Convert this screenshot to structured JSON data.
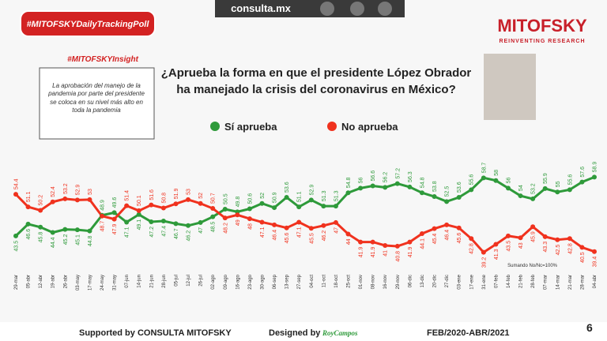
{
  "header": {
    "hashtag": "#MITOFSKYDailyTrackingPoll",
    "site": "consulta.mx",
    "brand": "MITOFSKY",
    "tagline": "REINVENTING RESEARCH"
  },
  "insight": {
    "title": "#MITOFSKYInsight",
    "text": "La aprobación del manejo de la pandemia por parte del presidente se coloca en su nivel más alto en toda la pandemia"
  },
  "footer": {
    "supported": "Supported by  CONSULTA  MITOFSKY",
    "designed": "Designed by",
    "designer": "RoyCampos",
    "period": "FEB/2020-ABR/2021",
    "page": "6"
  },
  "chart_data": {
    "type": "line",
    "title": "¿Aprueba la forma en que el presidente López Obrador ha manejado la crisis del coronavirus en México?",
    "note": "Sumando No/Nc=100%",
    "categories": [
      "29-mar",
      "05-abr",
      "12-abr",
      "19-abr",
      "26-abr",
      "03-may",
      "17-may",
      "24-may",
      "31-may",
      "07-jun",
      "14-jun",
      "21-jun",
      "28-jun",
      "05-jul",
      "12-jul",
      "26-jul",
      "02-ago",
      "09-ago",
      "16-ago",
      "23-ago",
      "30-ago",
      "06-sep",
      "13-sep",
      "27-sep",
      "04-oct",
      "11-oct",
      "18-oct",
      "25-oct",
      "01-nov",
      "08-nov",
      "16-nov",
      "29-nov",
      "06-dic",
      "13-dic",
      "20-dic",
      "27-dic",
      "03-ene",
      "17-ene",
      "31-ene",
      "07-feb",
      "14-feb",
      "21-feb",
      "28-feb",
      "07-mar",
      "14-mar",
      "21-mar",
      "28-mar",
      "04-abr"
    ],
    "series": [
      {
        "name": "Sí aprueba",
        "color": "#2e9a3a",
        "values": [
          43.5,
          46.6,
          45.8,
          44.4,
          45.2,
          45.1,
          44.8,
          48.9,
          49.6,
          47.1,
          49.1,
          47.2,
          47.4,
          46.7,
          46.2,
          47.0,
          48.5,
          50.5,
          49.8,
          50.6,
          52.0,
          50.9,
          53.6,
          51.1,
          52.9,
          51.3,
          51.3,
          54.8,
          56.0,
          56.6,
          56.2,
          57.2,
          56.3,
          54.8,
          53.8,
          52.5,
          53.6,
          55.6,
          58.7,
          58.0,
          56.0,
          54.0,
          53.2,
          55.9,
          55.0,
          55.6,
          57.6,
          58.9
        ]
      },
      {
        "name": "No aprueba",
        "color": "#f0321e",
        "values": [
          54.4,
          51.1,
          50.2,
          52.4,
          53.2,
          52.9,
          53.0,
          48.7,
          47.9,
          51.4,
          50.1,
          51.6,
          50.8,
          51.9,
          53.0,
          52.0,
          50.7,
          48.2,
          49.0,
          48.0,
          47.1,
          46.4,
          45.6,
          47.1,
          45.5,
          46.2,
          47.0,
          44.0,
          41.9,
          41.9,
          41.0,
          40.8,
          41.9,
          44.1,
          45.4,
          46.4,
          45.6,
          42.8,
          39.2,
          41.3,
          43.5,
          43.0,
          45.9,
          43.3,
          42.5,
          42.8,
          40.5,
          39.4
        ]
      }
    ],
    "ylim": [
      35,
      66
    ]
  }
}
